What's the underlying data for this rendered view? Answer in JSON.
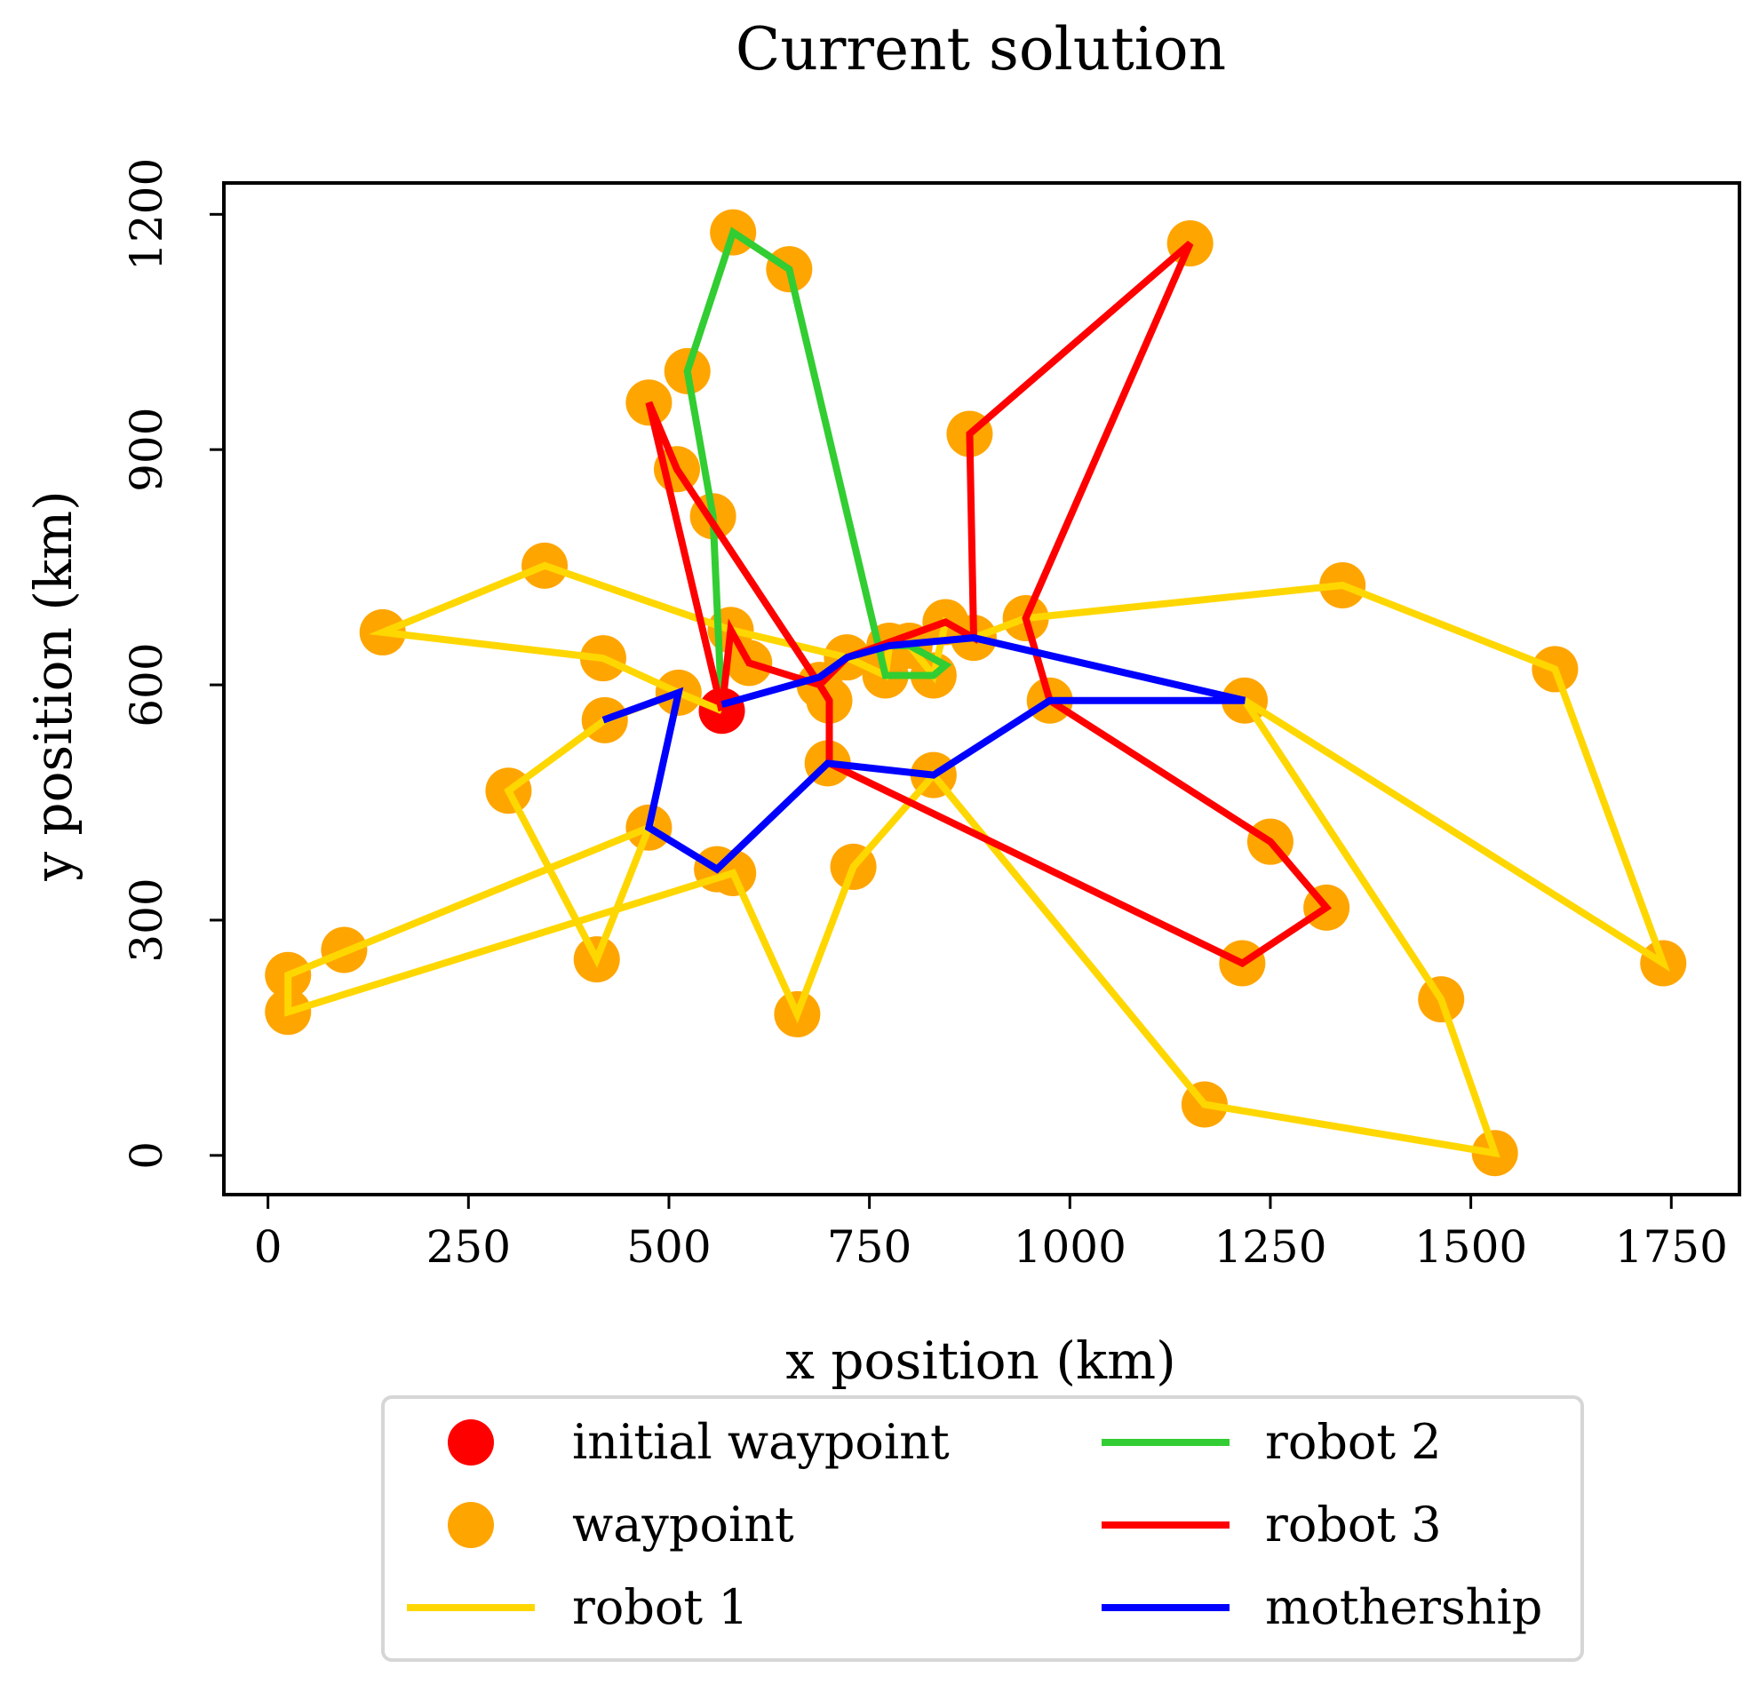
{
  "chart_data": {
    "type": "line",
    "title": "Current solution",
    "xlabel": "x position (km)",
    "ylabel": "y position (km)",
    "xlim": [
      -55,
      1835
    ],
    "ylim": [
      -50,
      1240
    ],
    "xticks": [
      0,
      250,
      500,
      750,
      1000,
      1250,
      1500,
      1750
    ],
    "yticks": [
      0,
      300,
      600,
      900,
      1200
    ],
    "grid": false,
    "legend_position": "bottom-center",
    "colors": {
      "initial_waypoint": "#ff0000",
      "waypoint": "#ffa500",
      "robot1": "#ffd700",
      "robot2": "#32cd32",
      "robot3": "#ff0000",
      "mothership": "#0000ff"
    },
    "initial_waypoint": {
      "name": "initial waypoint",
      "points": [
        [
          566,
          567
        ]
      ]
    },
    "waypoints": {
      "name": "waypoint",
      "points": [
        [
          580,
          1177
        ],
        [
          650,
          1130
        ],
        [
          523,
          1000
        ],
        [
          475,
          960
        ],
        [
          510,
          875
        ],
        [
          555,
          815
        ],
        [
          345,
          752
        ],
        [
          143,
          667
        ],
        [
          418,
          634
        ],
        [
          420,
          555
        ],
        [
          512,
          590
        ],
        [
          577,
          670
        ],
        [
          600,
          628
        ],
        [
          688,
          600
        ],
        [
          700,
          580
        ],
        [
          722,
          635
        ],
        [
          770,
          612
        ],
        [
          775,
          650
        ],
        [
          800,
          650
        ],
        [
          830,
          612
        ],
        [
          845,
          680
        ],
        [
          880,
          660
        ],
        [
          875,
          920
        ],
        [
          945,
          685
        ],
        [
          975,
          580
        ],
        [
          1150,
          1163
        ],
        [
          1340,
          727
        ],
        [
          1605,
          620
        ],
        [
          1740,
          245
        ],
        [
          1218,
          580
        ],
        [
          1250,
          400
        ],
        [
          1320,
          316
        ],
        [
          1215,
          245
        ],
        [
          1463,
          199
        ],
        [
          1530,
          3
        ],
        [
          1168,
          65
        ],
        [
          830,
          485
        ],
        [
          730,
          368
        ],
        [
          660,
          180
        ],
        [
          580,
          360
        ],
        [
          560,
          365
        ],
        [
          475,
          418
        ],
        [
          300,
          465
        ],
        [
          410,
          250
        ],
        [
          95,
          262
        ],
        [
          25,
          230
        ],
        [
          25,
          183
        ],
        [
          698,
          500
        ]
      ]
    },
    "series": [
      {
        "name": "robot 1",
        "points": [
          [
            566,
            567
          ],
          [
            512,
            590
          ],
          [
            418,
            634
          ],
          [
            143,
            667
          ],
          [
            345,
            752
          ],
          [
            577,
            670
          ],
          [
            722,
            635
          ],
          [
            770,
            612
          ],
          [
            775,
            650
          ],
          [
            800,
            650
          ],
          [
            830,
            612
          ],
          [
            845,
            680
          ],
          [
            880,
            660
          ],
          [
            945,
            685
          ],
          [
            1340,
            727
          ],
          [
            1605,
            620
          ],
          [
            1740,
            245
          ],
          [
            1218,
            580
          ],
          [
            1463,
            199
          ],
          [
            1530,
            3
          ],
          [
            1168,
            65
          ],
          [
            830,
            485
          ],
          [
            730,
            368
          ],
          [
            660,
            180
          ],
          [
            580,
            360
          ],
          [
            25,
            183
          ],
          [
            25,
            230
          ],
          [
            475,
            418
          ],
          [
            410,
            250
          ],
          [
            300,
            465
          ],
          [
            420,
            555
          ],
          [
            512,
            590
          ]
        ]
      },
      {
        "name": "robot 2",
        "points": [
          [
            566,
            567
          ],
          [
            555,
            815
          ],
          [
            523,
            1000
          ],
          [
            580,
            1177
          ],
          [
            650,
            1130
          ],
          [
            770,
            612
          ],
          [
            830,
            612
          ],
          [
            845,
            625
          ],
          [
            800,
            650
          ],
          [
            775,
            650
          ]
        ]
      },
      {
        "name": "robot 3",
        "points": [
          [
            566,
            567
          ],
          [
            475,
            960
          ],
          [
            510,
            875
          ],
          [
            688,
            600
          ],
          [
            722,
            635
          ],
          [
            845,
            680
          ],
          [
            880,
            660
          ],
          [
            875,
            920
          ],
          [
            1150,
            1163
          ],
          [
            945,
            685
          ],
          [
            975,
            580
          ],
          [
            1250,
            400
          ],
          [
            1320,
            316
          ],
          [
            1215,
            245
          ],
          [
            700,
            500
          ],
          [
            700,
            580
          ],
          [
            688,
            600
          ],
          [
            600,
            628
          ],
          [
            577,
            670
          ],
          [
            566,
            567
          ]
        ]
      },
      {
        "name": "mothership",
        "points": [
          [
            418,
            555
          ],
          [
            512,
            590
          ],
          [
            475,
            418
          ],
          [
            560,
            365
          ],
          [
            698,
            500
          ],
          [
            830,
            485
          ],
          [
            975,
            580
          ],
          [
            1218,
            580
          ],
          [
            880,
            660
          ],
          [
            775,
            650
          ],
          [
            722,
            635
          ],
          [
            688,
            610
          ],
          [
            566,
            575
          ]
        ]
      }
    ],
    "legend": [
      {
        "label": "initial waypoint",
        "kind": "marker",
        "color": "#ff0000"
      },
      {
        "label": "waypoint",
        "kind": "marker",
        "color": "#ffa500"
      },
      {
        "label": "robot 1",
        "kind": "line",
        "color": "#ffd700"
      },
      {
        "label": "robot 2",
        "kind": "line",
        "color": "#32cd32"
      },
      {
        "label": "robot 3",
        "kind": "line",
        "color": "#ff0000"
      },
      {
        "label": "mothership",
        "kind": "line",
        "color": "#0000ff"
      }
    ]
  }
}
